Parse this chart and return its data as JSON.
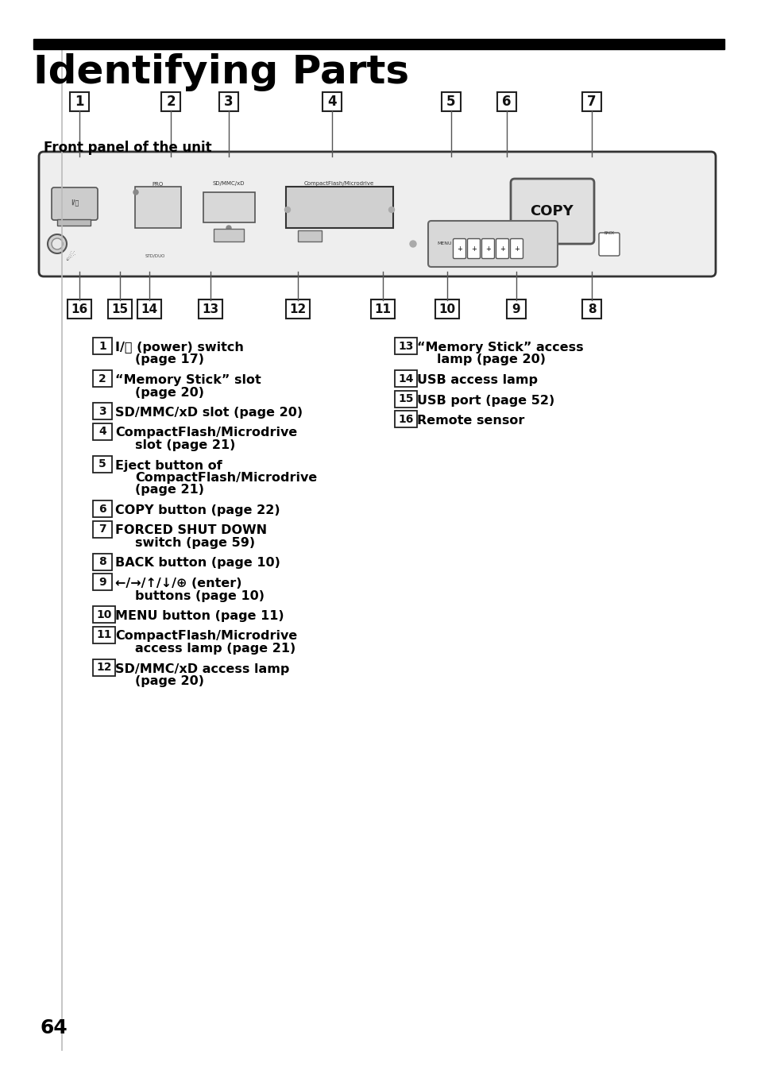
{
  "title": "Identifying Parts",
  "subtitle": "Front panel of the unit",
  "bg_color": "#ffffff",
  "text_color": "#000000",
  "title_bar_color": "#000000",
  "page_number": "64",
  "top_nums": [
    "1",
    "2",
    "3",
    "4",
    "5",
    "6",
    "7"
  ],
  "top_x": [
    100,
    215,
    288,
    418,
    568,
    638,
    745
  ],
  "bot_nums": [
    "16",
    "15",
    "14",
    "13",
    "12",
    "11",
    "10",
    "9",
    "8"
  ],
  "bot_x": [
    100,
    151,
    188,
    265,
    375,
    482,
    563,
    650,
    745
  ],
  "left_items": [
    {
      "num": "1",
      "lines": [
        "I/⌛ (power) switch",
        "(page 17)"
      ]
    },
    {
      "num": "2",
      "lines": [
        "“Memory Stick” slot",
        "(page 20)"
      ]
    },
    {
      "num": "3",
      "lines": [
        "SD/MMC/xD slot (page 20)"
      ]
    },
    {
      "num": "4",
      "lines": [
        "CompactFlash/Microdrive",
        "slot (page 21)"
      ]
    },
    {
      "num": "5",
      "lines": [
        "Eject button of",
        "CompactFlash/Microdrive",
        "(page 21)"
      ]
    },
    {
      "num": "6",
      "lines": [
        "COPY button (page 22)"
      ]
    },
    {
      "num": "7",
      "lines": [
        "FORCED SHUT DOWN",
        "switch (page 59)"
      ]
    },
    {
      "num": "8",
      "lines": [
        "BACK button (page 10)"
      ]
    },
    {
      "num": "9",
      "lines": [
        "←/→/↑/↓/⊕ (enter)",
        "buttons (page 10)"
      ]
    },
    {
      "num": "10",
      "lines": [
        "MENU button (page 11)"
      ]
    },
    {
      "num": "11",
      "lines": [
        "CompactFlash/Microdrive",
        "access lamp (page 21)"
      ]
    },
    {
      "num": "12",
      "lines": [
        "SD/MMC/xD access lamp",
        "(page 20)"
      ]
    }
  ],
  "right_items": [
    {
      "num": "13",
      "lines": [
        "“Memory Stick” access",
        "lamp (page 20)"
      ]
    },
    {
      "num": "14",
      "lines": [
        "USB access lamp"
      ]
    },
    {
      "num": "15",
      "lines": [
        "USB port (page 52)"
      ]
    },
    {
      "num": "16",
      "lines": [
        "Remote sensor"
      ]
    }
  ]
}
